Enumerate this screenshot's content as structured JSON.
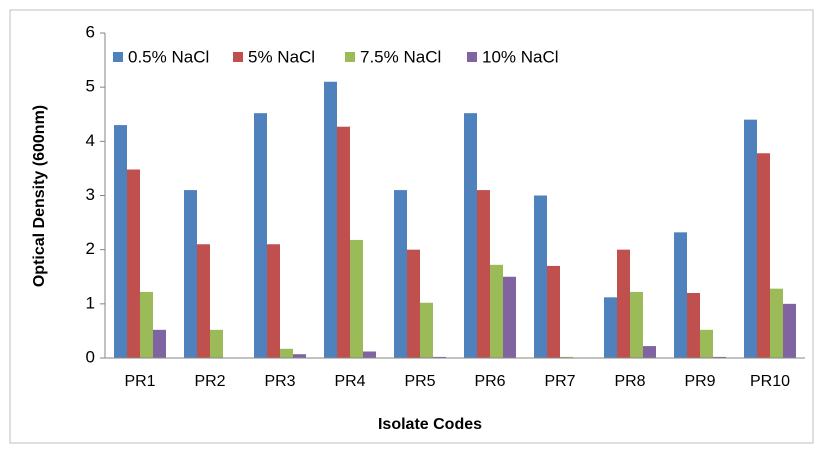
{
  "chart_data": {
    "type": "bar",
    "x_label": "Isolate Codes",
    "y_label": "Optical Density (600nm)",
    "categories": [
      "PR1",
      "PR2",
      "PR3",
      "PR4",
      "PR5",
      "PR6",
      "PR7",
      "PR8",
      "PR9",
      "PR10"
    ],
    "series": [
      {
        "name": "0.5% NaCl",
        "color": "#4f81bd",
        "values": [
          4.3,
          3.1,
          4.52,
          5.1,
          3.1,
          4.52,
          3.0,
          1.12,
          2.32,
          4.4
        ]
      },
      {
        "name": "5% NaCl",
        "color": "#c0504d",
        "values": [
          3.48,
          2.1,
          2.1,
          4.27,
          2.0,
          3.1,
          1.7,
          2.0,
          1.2,
          3.78
        ]
      },
      {
        "name": "7.5% NaCl",
        "color": "#9bbb59",
        "values": [
          1.22,
          0.52,
          0.17,
          2.18,
          1.02,
          1.72,
          0.02,
          1.22,
          0.52,
          1.28
        ]
      },
      {
        "name": "10% NaCl",
        "color": "#8064a2",
        "values": [
          0.52,
          0,
          0.07,
          0.12,
          0.02,
          1.5,
          0,
          0.22,
          0.02,
          1.0
        ]
      }
    ],
    "ylim": [
      0,
      6
    ],
    "yticks": [
      0,
      1,
      2,
      3,
      4,
      5,
      6
    ],
    "grid": false,
    "legend": "top-left"
  }
}
